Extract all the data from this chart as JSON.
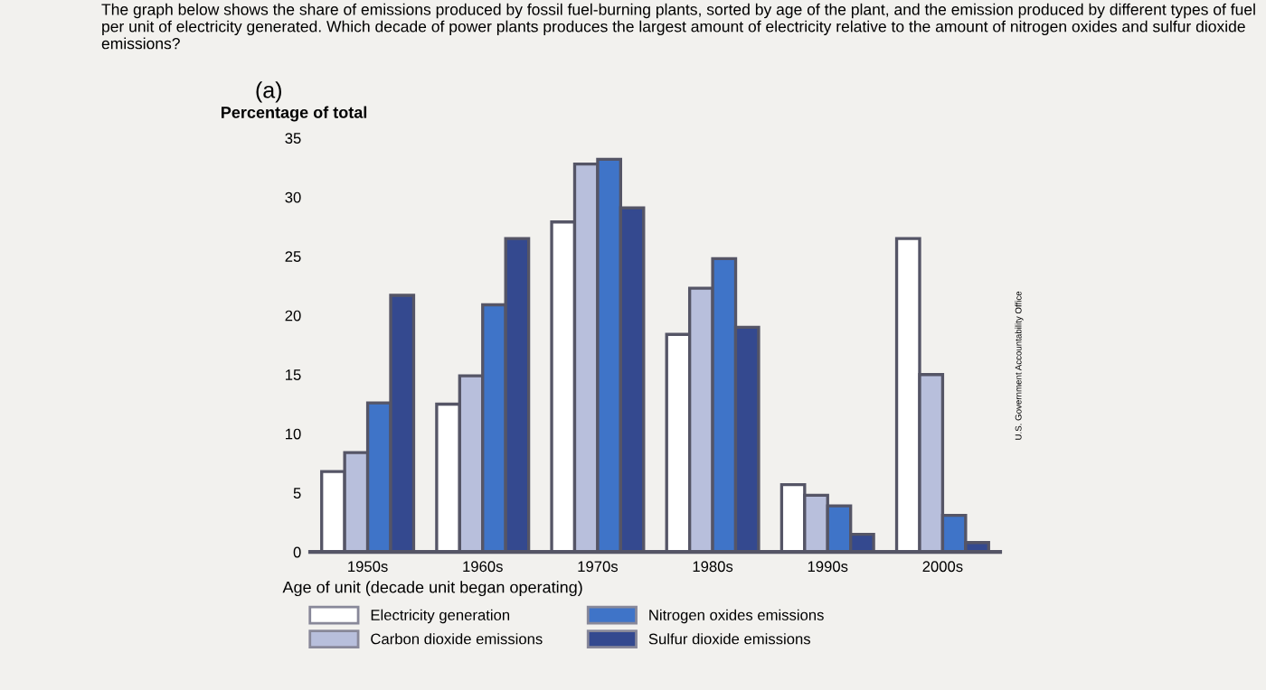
{
  "chart_data": {
    "type": "bar",
    "title": "(a)",
    "ylabel": "Percentage of total",
    "xlabel": "Age of unit (decade unit began operating)",
    "categories": [
      "1950s",
      "1960s",
      "1970s",
      "1980s",
      "1990s",
      "2000s"
    ],
    "series": [
      {
        "name": "Electricity generation",
        "color": "#ffffff",
        "values": [
          6.8,
          12.5,
          27.9,
          18.4,
          5.7,
          26.5
        ]
      },
      {
        "name": "Carbon dioxide emissions",
        "color": "#b8bfdc",
        "values": [
          8.4,
          14.9,
          32.8,
          22.3,
          4.8,
          15.0
        ]
      },
      {
        "name": "Nitrogen oxides emissions",
        "color": "#3f74c8",
        "values": [
          12.6,
          20.9,
          33.2,
          24.8,
          3.9,
          3.1
        ]
      },
      {
        "name": "Sulfur dioxide emissions",
        "color": "#34498f",
        "values": [
          21.7,
          26.5,
          29.1,
          19.0,
          1.5,
          0.8
        ]
      }
    ],
    "ylim": [
      0,
      35
    ],
    "yticks": [
      0,
      5,
      10,
      15,
      20,
      25,
      30,
      35
    ],
    "grid": false,
    "legend": "bottom",
    "annotations": [
      "The graph below shows the share of emissions produced by fossil fuel-burning plants, sorted by age of the plant, and the emission produced by different types of fuel per unit of electricity generated. Which decade of power plants produces the largest amount of electricity relative to the amount of nitrogen oxides and sulfur dioxide emissions?",
      "U.S. Government Accountability Office"
    ]
  }
}
